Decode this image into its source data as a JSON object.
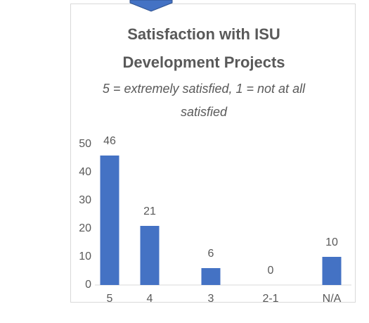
{
  "chart_data": {
    "type": "bar",
    "title_lines": [
      "Satisfaction with ISU",
      "Development Projects"
    ],
    "subtitle_lines": [
      "5 = extremely satisfied, 1 = not at all",
      "satisfied"
    ],
    "categories": [
      "5",
      "4",
      "3",
      "2-1",
      "N/A"
    ],
    "values": [
      46,
      21,
      6,
      0,
      10
    ],
    "color": "#4472c4",
    "ylim": [
      0,
      50
    ],
    "yticks": [
      0,
      10,
      20,
      30,
      40,
      50
    ],
    "grid": false
  }
}
